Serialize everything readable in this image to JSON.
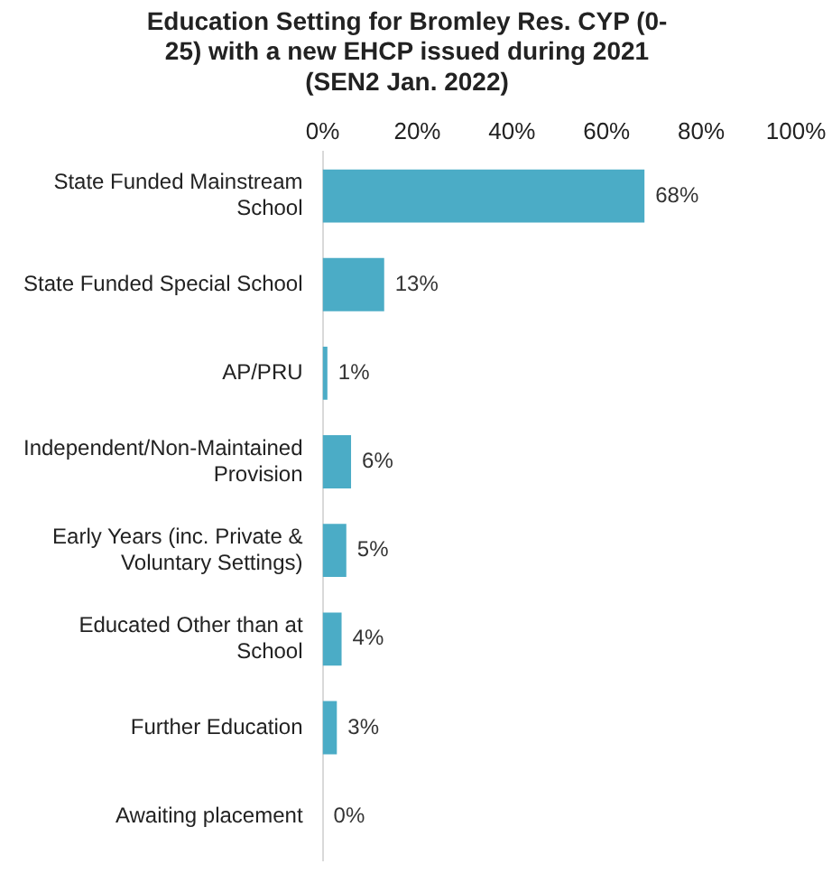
{
  "chart_data": {
    "type": "bar",
    "orientation": "horizontal",
    "title": "Education Setting for Bromley Res. CYP (0-25) with a new EHCP issued during 2021 (SEN2 Jan. 2022)",
    "categories": [
      "State Funded Mainstream School",
      "State Funded Special School",
      "AP/PRU",
      "Independent/Non-Maintained Provision",
      "Early Years (inc. Private & Voluntary Settings)",
      "Educated Other than at School",
      "Further Education",
      "Awaiting placement"
    ],
    "values": [
      68,
      13,
      1,
      6,
      5,
      4,
      3,
      0
    ],
    "value_labels": [
      "68%",
      "13%",
      "1%",
      "6%",
      "5%",
      "4%",
      "3%",
      "0%"
    ],
    "color": "#4bacc6",
    "xlim": [
      0,
      100
    ],
    "xticks": [
      {
        "value": 0,
        "label": "0%"
      },
      {
        "value": 20,
        "label": "20%"
      },
      {
        "value": 40,
        "label": "40%"
      },
      {
        "value": 60,
        "label": "60%"
      },
      {
        "value": 80,
        "label": "80%"
      },
      {
        "value": 100,
        "label": "100%"
      }
    ],
    "grid": false,
    "legend": false
  }
}
